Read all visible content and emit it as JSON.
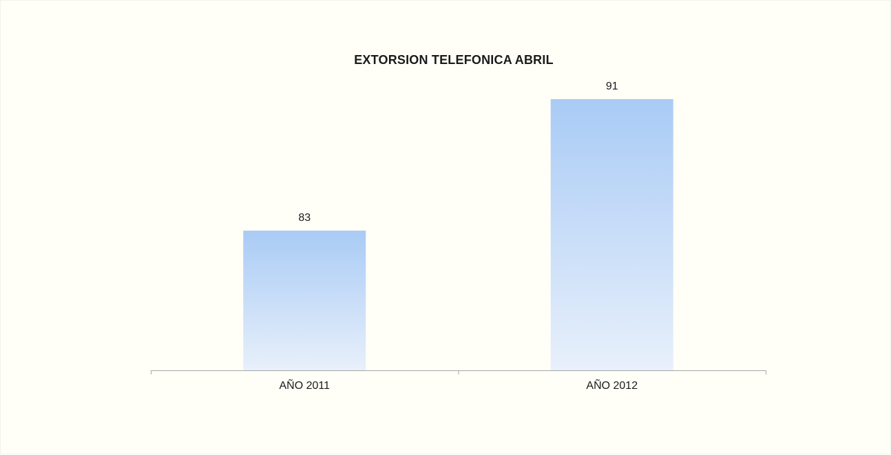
{
  "chart_data": {
    "type": "bar",
    "title": "EXTORSION TELEFONICA ABRIL",
    "categories": [
      "AÑO 2011",
      "AÑO 2012"
    ],
    "values": [
      83,
      91
    ],
    "data_labels": [
      "83",
      "91"
    ],
    "xlabel": "",
    "ylabel": "",
    "ylim": [
      74.5,
      91
    ],
    "grid": false,
    "legend": "none",
    "colors": {
      "bar_top": "#a9cbf5",
      "bar_bottom": "#e8f0fb",
      "axis": "#a6a6a6",
      "text": "#1a1a1a",
      "background": "#fffff8"
    }
  }
}
